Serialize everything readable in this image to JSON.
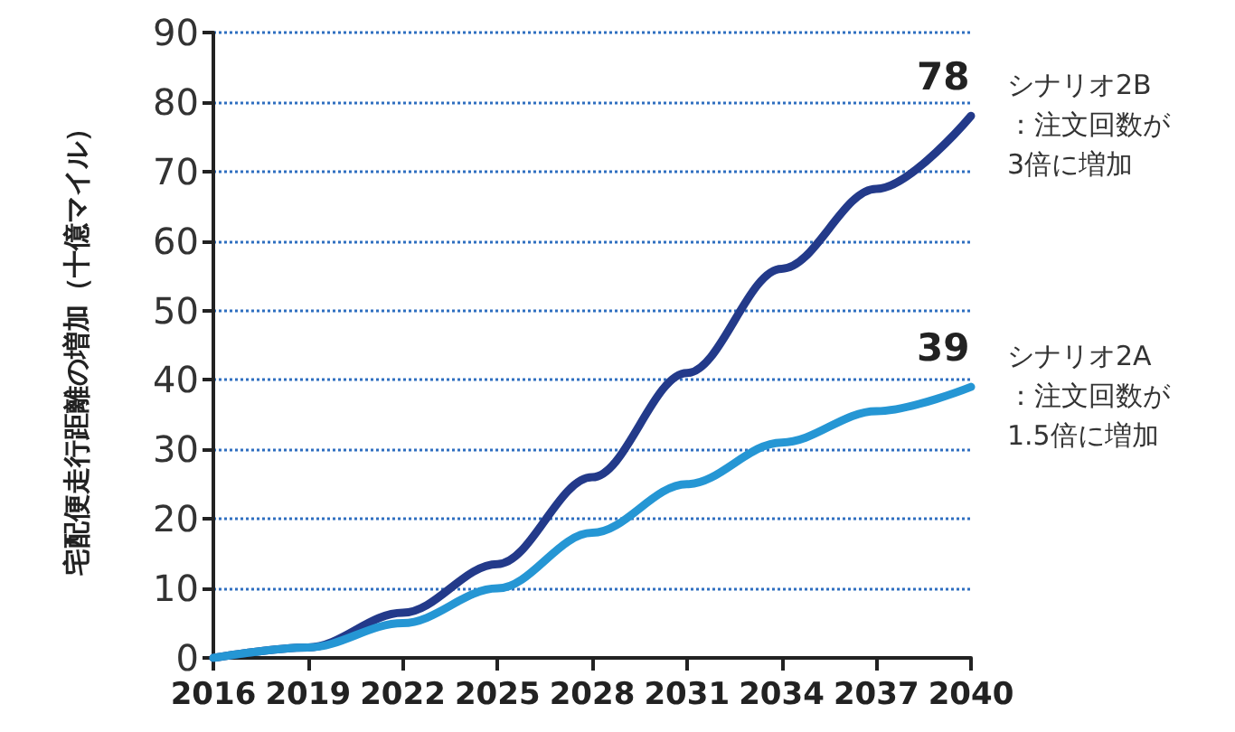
{
  "chart_data": {
    "type": "line",
    "ylabel": "宅配便走行距離の増加（十億マイル）",
    "x": [
      2016,
      2019,
      2022,
      2025,
      2028,
      2031,
      2034,
      2037,
      2040
    ],
    "series": [
      {
        "name": "シナリオ2B：注文回数が3倍に増加",
        "color": "#233a8a",
        "values": [
          0,
          1.5,
          6.5,
          13.5,
          26,
          41,
          56,
          67.5,
          78
        ],
        "value_labels": [
          null,
          null,
          null,
          null,
          null,
          null,
          null,
          null,
          "78"
        ]
      },
      {
        "name": "シナリオ2A：注文回数が1.5倍に増加",
        "color": "#2596d4",
        "values": [
          0,
          1.5,
          5,
          10,
          18,
          25,
          31,
          35.5,
          39
        ],
        "value_labels": [
          null,
          null,
          null,
          null,
          null,
          null,
          null,
          null,
          "39"
        ]
      }
    ],
    "xlim": [
      2016,
      2040
    ],
    "xticks": [
      2016,
      2019,
      2022,
      2025,
      2028,
      2031,
      2034,
      2037,
      2040
    ],
    "ylim": [
      0,
      90
    ],
    "yticks": [
      0,
      10,
      20,
      30,
      40,
      50,
      60,
      70,
      80,
      90
    ],
    "grid": "y",
    "legend": false,
    "marker": "none",
    "line_style": "solid"
  }
}
